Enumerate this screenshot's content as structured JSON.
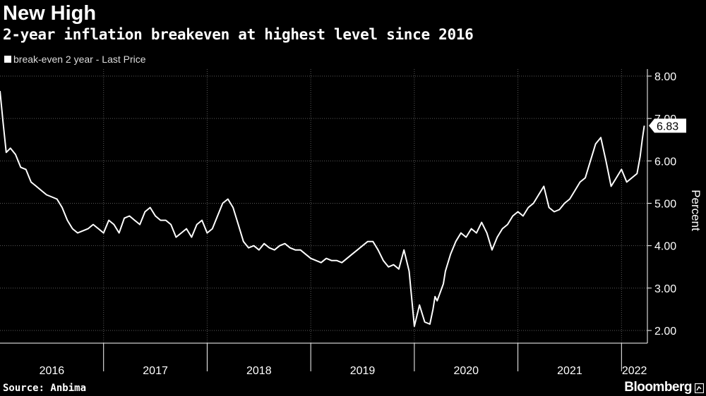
{
  "header": {
    "title": "New High",
    "subtitle": "2-year inflation breakeven at highest level since 2016"
  },
  "legend": {
    "label": "break-even 2 year - Last Price"
  },
  "footer": {
    "source": "Source: Anbima",
    "brand": "Bloomberg"
  },
  "colors": {
    "background": "#000000",
    "line": "#ffffff",
    "grid": "#5a5a5a"
  },
  "chart_data": {
    "type": "line",
    "title": "New High",
    "subtitle": "2-year inflation breakeven at highest level since 2016",
    "ylabel": "Percent",
    "ylim": [
      2.0,
      8.0
    ],
    "yticks": [
      "2.00",
      "3.00",
      "4.00",
      "5.00",
      "6.00",
      "7.00",
      "8.00"
    ],
    "xlim": [
      2016.0,
      2022.25
    ],
    "xticks": [
      "2016",
      "2017",
      "2018",
      "2019",
      "2020",
      "2021",
      "2022"
    ],
    "grid": true,
    "legend_position": "top-left",
    "last_value_label": "6.83",
    "series": [
      {
        "name": "break-even 2 year - Last Price",
        "x": [
          2016.0,
          2016.03,
          2016.06,
          2016.1,
          2016.15,
          2016.2,
          2016.25,
          2016.3,
          2016.35,
          2016.4,
          2016.45,
          2016.5,
          2016.55,
          2016.6,
          2016.65,
          2016.7,
          2016.75,
          2016.8,
          2016.85,
          2016.9,
          2016.95,
          2017.0,
          2017.05,
          2017.1,
          2017.15,
          2017.2,
          2017.25,
          2017.3,
          2017.35,
          2017.4,
          2017.45,
          2017.5,
          2017.55,
          2017.6,
          2017.65,
          2017.7,
          2017.75,
          2017.8,
          2017.85,
          2017.9,
          2017.95,
          2018.0,
          2018.05,
          2018.1,
          2018.15,
          2018.2,
          2018.25,
          2018.3,
          2018.35,
          2018.4,
          2018.45,
          2018.5,
          2018.55,
          2018.6,
          2018.65,
          2018.7,
          2018.75,
          2018.8,
          2018.85,
          2018.9,
          2018.95,
          2019.0,
          2019.05,
          2019.1,
          2019.15,
          2019.2,
          2019.25,
          2019.3,
          2019.35,
          2019.4,
          2019.45,
          2019.5,
          2019.55,
          2019.6,
          2019.65,
          2019.7,
          2019.75,
          2019.8,
          2019.85,
          2019.9,
          2019.95,
          2020.0,
          2020.05,
          2020.1,
          2020.15,
          2020.18,
          2020.2,
          2020.22,
          2020.25,
          2020.28,
          2020.3,
          2020.35,
          2020.4,
          2020.45,
          2020.5,
          2020.55,
          2020.6,
          2020.65,
          2020.7,
          2020.75,
          2020.8,
          2020.85,
          2020.9,
          2020.95,
          2021.0,
          2021.05,
          2021.1,
          2021.15,
          2021.2,
          2021.25,
          2021.3,
          2021.35,
          2021.4,
          2021.45,
          2021.5,
          2021.55,
          2021.6,
          2021.65,
          2021.7,
          2021.75,
          2021.8,
          2021.85,
          2021.9,
          2021.95,
          2022.0,
          2022.05,
          2022.1,
          2022.15,
          2022.18,
          2022.2,
          2022.22
        ],
        "y": [
          7.65,
          6.9,
          6.2,
          6.3,
          6.15,
          5.85,
          5.8,
          5.5,
          5.4,
          5.3,
          5.2,
          5.15,
          5.1,
          4.9,
          4.6,
          4.4,
          4.3,
          4.35,
          4.4,
          4.5,
          4.4,
          4.3,
          4.6,
          4.5,
          4.3,
          4.65,
          4.7,
          4.6,
          4.5,
          4.8,
          4.9,
          4.7,
          4.6,
          4.6,
          4.5,
          4.2,
          4.3,
          4.4,
          4.2,
          4.5,
          4.6,
          4.3,
          4.4,
          4.7,
          5.0,
          5.1,
          4.9,
          4.5,
          4.1,
          3.95,
          4.0,
          3.9,
          4.05,
          3.95,
          3.9,
          4.0,
          4.05,
          3.95,
          3.9,
          3.9,
          3.8,
          3.7,
          3.65,
          3.6,
          3.7,
          3.65,
          3.65,
          3.6,
          3.7,
          3.8,
          3.9,
          4.0,
          4.1,
          4.1,
          3.9,
          3.65,
          3.5,
          3.55,
          3.45,
          3.9,
          3.4,
          2.1,
          2.6,
          2.2,
          2.15,
          2.5,
          2.8,
          2.7,
          2.9,
          3.1,
          3.4,
          3.8,
          4.1,
          4.3,
          4.2,
          4.4,
          4.3,
          4.55,
          4.3,
          3.9,
          4.2,
          4.4,
          4.5,
          4.7,
          4.8,
          4.7,
          4.9,
          5.0,
          5.2,
          5.4,
          4.9,
          4.8,
          4.85,
          5.0,
          5.1,
          5.3,
          5.5,
          5.6,
          6.0,
          6.4,
          6.55,
          6.0,
          5.4,
          5.6,
          5.8,
          5.5,
          5.6,
          5.7,
          6.1,
          6.5,
          6.83
        ]
      }
    ]
  }
}
